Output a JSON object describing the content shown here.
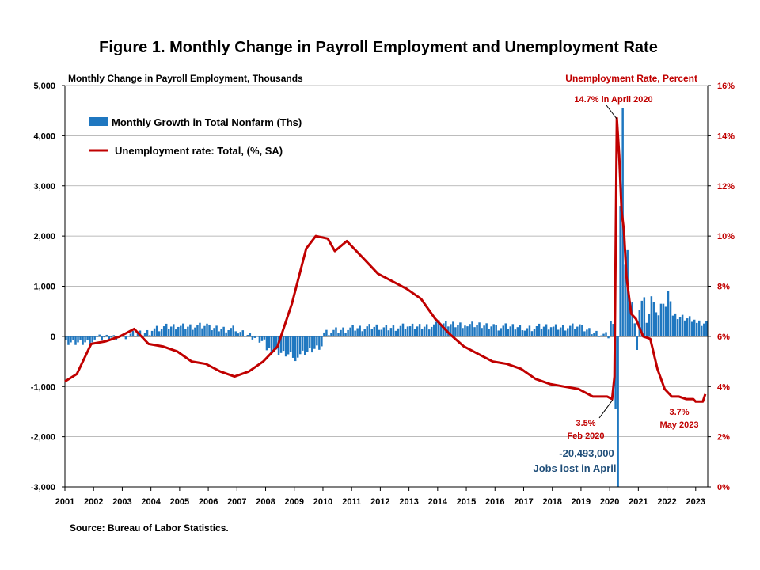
{
  "chart_data": {
    "type": "bar+line",
    "title": "Figure 1. Monthly Change in Payroll Employment and Unemployment Rate",
    "ylabel_left": "Monthly Change in Payroll Employment, Thousands",
    "ylabel_right": "Unemployment Rate, Percent",
    "y_left_ticks": [
      "5,000",
      "4,000",
      "3,000",
      "2,000",
      "1,000",
      "0",
      "-1,000",
      "-2,000",
      "-3,000"
    ],
    "y_right_ticks": [
      "16%",
      "14%",
      "12%",
      "10%",
      "8%",
      "6%",
      "4%",
      "2%",
      "0%"
    ],
    "x_ticks": [
      "2001",
      "2002",
      "2003",
      "2004",
      "2005",
      "2006",
      "2007",
      "2008",
      "2009",
      "2010",
      "2011",
      "2012",
      "2013",
      "2014",
      "2015",
      "2016",
      "2017",
      "2018",
      "2019",
      "2020",
      "2021",
      "2022",
      "2023"
    ],
    "ylim_left": [
      -3000,
      5000
    ],
    "ylim_right": [
      0,
      16
    ],
    "grid": "horizontal",
    "legend_placement": "top-left",
    "series": [
      {
        "name": "Monthly Growth in Total Nonfarm (Ths)",
        "type": "bar",
        "color": "#1f77c0",
        "annual_avg": [
          {
            "year": 2001,
            "value": -140
          },
          {
            "year": 2002,
            "value": -40
          },
          {
            "year": 2003,
            "value": 10
          },
          {
            "year": 2004,
            "value": 170
          },
          {
            "year": 2005,
            "value": 210
          },
          {
            "year": 2006,
            "value": 175
          },
          {
            "year": 2007,
            "value": 95
          },
          {
            "year": 2008,
            "value": -300
          },
          {
            "year": 2009,
            "value": -420
          },
          {
            "year": 2010,
            "value": 90
          },
          {
            "year": 2011,
            "value": 175
          },
          {
            "year": 2012,
            "value": 180
          },
          {
            "year": 2013,
            "value": 190
          },
          {
            "year": 2014,
            "value": 250
          },
          {
            "year": 2015,
            "value": 225
          },
          {
            "year": 2016,
            "value": 190
          },
          {
            "year": 2017,
            "value": 175
          },
          {
            "year": 2018,
            "value": 195
          },
          {
            "year": 2019,
            "value": 165
          },
          {
            "year": 2020,
            "value": -200
          },
          {
            "year": 2021,
            "value": 600
          },
          {
            "year": 2022,
            "value": 400
          },
          {
            "year": 2023,
            "value": 280
          }
        ],
        "covid": [
          {
            "date": "2020-01",
            "value": 310
          },
          {
            "date": "2020-02",
            "value": 250
          },
          {
            "date": "2020-03",
            "value": -1450
          },
          {
            "date": "2020-04",
            "value": -20493
          },
          {
            "date": "2020-05",
            "value": 2600
          },
          {
            "date": "2020-06",
            "value": 4550
          },
          {
            "date": "2020-07",
            "value": 1430
          },
          {
            "date": "2020-08",
            "value": 1720
          },
          {
            "date": "2020-09",
            "value": 700
          },
          {
            "date": "2020-10",
            "value": 680
          },
          {
            "date": "2020-11",
            "value": 260
          },
          {
            "date": "2020-12",
            "value": -270
          },
          {
            "date": "2021-01",
            "value": 520
          },
          {
            "date": "2021-02",
            "value": 710
          },
          {
            "date": "2021-03",
            "value": 780
          },
          {
            "date": "2021-04",
            "value": 270
          },
          {
            "date": "2021-05",
            "value": 450
          },
          {
            "date": "2021-06",
            "value": 800
          },
          {
            "date": "2021-07",
            "value": 690
          },
          {
            "date": "2021-08",
            "value": 480
          },
          {
            "date": "2021-09",
            "value": 420
          },
          {
            "date": "2021-10",
            "value": 650
          },
          {
            "date": "2021-11",
            "value": 650
          },
          {
            "date": "2021-12",
            "value": 590
          },
          {
            "date": "2022-01",
            "value": 900
          },
          {
            "date": "2022-02",
            "value": 700
          }
        ]
      },
      {
        "name": "Unemployment rate: Total, (%, SA)",
        "type": "line",
        "color": "#c00000",
        "points": [
          {
            "date": "2001-01",
            "value": 4.2
          },
          {
            "date": "2001-06",
            "value": 4.5
          },
          {
            "date": "2001-12",
            "value": 5.7
          },
          {
            "date": "2002-06",
            "value": 5.8
          },
          {
            "date": "2002-12",
            "value": 6.0
          },
          {
            "date": "2003-06",
            "value": 6.3
          },
          {
            "date": "2003-12",
            "value": 5.7
          },
          {
            "date": "2004-06",
            "value": 5.6
          },
          {
            "date": "2004-12",
            "value": 5.4
          },
          {
            "date": "2005-06",
            "value": 5.0
          },
          {
            "date": "2005-12",
            "value": 4.9
          },
          {
            "date": "2006-06",
            "value": 4.6
          },
          {
            "date": "2006-12",
            "value": 4.4
          },
          {
            "date": "2007-06",
            "value": 4.6
          },
          {
            "date": "2007-12",
            "value": 5.0
          },
          {
            "date": "2008-06",
            "value": 5.6
          },
          {
            "date": "2008-12",
            "value": 7.3
          },
          {
            "date": "2009-06",
            "value": 9.5
          },
          {
            "date": "2009-10",
            "value": 10.0
          },
          {
            "date": "2010-03",
            "value": 9.9
          },
          {
            "date": "2010-06",
            "value": 9.4
          },
          {
            "date": "2010-11",
            "value": 9.8
          },
          {
            "date": "2011-06",
            "value": 9.1
          },
          {
            "date": "2011-12",
            "value": 8.5
          },
          {
            "date": "2012-06",
            "value": 8.2
          },
          {
            "date": "2012-12",
            "value": 7.9
          },
          {
            "date": "2013-06",
            "value": 7.5
          },
          {
            "date": "2013-12",
            "value": 6.7
          },
          {
            "date": "2014-06",
            "value": 6.1
          },
          {
            "date": "2014-12",
            "value": 5.6
          },
          {
            "date": "2015-06",
            "value": 5.3
          },
          {
            "date": "2015-12",
            "value": 5.0
          },
          {
            "date": "2016-06",
            "value": 4.9
          },
          {
            "date": "2016-12",
            "value": 4.7
          },
          {
            "date": "2017-06",
            "value": 4.3
          },
          {
            "date": "2017-12",
            "value": 4.1
          },
          {
            "date": "2018-06",
            "value": 4.0
          },
          {
            "date": "2018-12",
            "value": 3.9
          },
          {
            "date": "2019-06",
            "value": 3.6
          },
          {
            "date": "2019-12",
            "value": 3.6
          },
          {
            "date": "2020-02",
            "value": 3.5
          },
          {
            "date": "2020-03",
            "value": 4.4
          },
          {
            "date": "2020-04",
            "value": 14.7
          },
          {
            "date": "2020-05",
            "value": 13.2
          },
          {
            "date": "2020-06",
            "value": 11.0
          },
          {
            "date": "2020-07",
            "value": 10.2
          },
          {
            "date": "2020-08",
            "value": 8.4
          },
          {
            "date": "2020-10",
            "value": 6.9
          },
          {
            "date": "2020-12",
            "value": 6.7
          },
          {
            "date": "2021-03",
            "value": 6.0
          },
          {
            "date": "2021-06",
            "value": 5.9
          },
          {
            "date": "2021-09",
            "value": 4.7
          },
          {
            "date": "2021-12",
            "value": 3.9
          },
          {
            "date": "2022-03",
            "value": 3.6
          },
          {
            "date": "2022-06",
            "value": 3.6
          },
          {
            "date": "2022-09",
            "value": 3.5
          },
          {
            "date": "2022-12",
            "value": 3.5
          },
          {
            "date": "2023-01",
            "value": 3.4
          },
          {
            "date": "2023-04",
            "value": 3.4
          },
          {
            "date": "2023-05",
            "value": 3.7
          }
        ]
      }
    ],
    "annotations": {
      "peak_label": "14.7% in April 2020",
      "feb_value": "3.5%",
      "feb_date": "Feb 2020",
      "may_value": "3.7%",
      "may_date": "May 2023",
      "jobs_lost_value": "-20,493,000",
      "jobs_lost_text": "Jobs lost in April"
    },
    "source": "Source: Bureau of Labor Statistics."
  }
}
